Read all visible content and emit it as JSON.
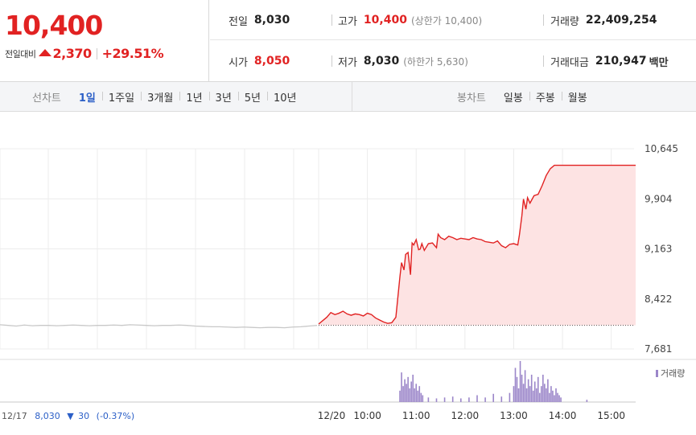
{
  "quote": {
    "price": "10,400",
    "change_label": "전일대비",
    "change_amount": "2,370",
    "change_pct": "+29.51%",
    "prev_close_label": "전일",
    "prev_close": "8,030",
    "high_label": "고가",
    "high": "10,400",
    "upper_limit": "(상한가 10,400)",
    "volume_label": "거래량",
    "volume": "22,409,254",
    "open_label": "시가",
    "open": "8,050",
    "low_label": "저가",
    "low": "8,030",
    "lower_limit": "(하한가 5,630)",
    "value_label": "거래대금",
    "value": "210,947",
    "value_unit": "백만"
  },
  "toolbar": {
    "line_chart_label": "선차트",
    "periods": [
      "1일",
      "1주일",
      "3개월",
      "1년",
      "3년",
      "5년",
      "10년"
    ],
    "active_period": "1일",
    "candle_chart_label": "봉차트",
    "candle_periods": [
      "일봉",
      "주봉",
      "월봉"
    ]
  },
  "colors": {
    "up": "#e12222",
    "area_fill": "#fde3e3",
    "prev_day_line": "#c8c8c8",
    "volume_bar": "#9b86c9",
    "active_tab": "#2b5fc7"
  },
  "chart_data": {
    "type": "line",
    "y_ticks": [
      "10,645",
      "9,904",
      "9,163",
      "8,422",
      "7,681"
    ],
    "ylim": [
      7681,
      10645
    ],
    "x_ticks": [
      "12/20",
      "10:00",
      "11:00",
      "12:00",
      "13:00",
      "14:00",
      "15:00"
    ],
    "prev_close": 8030,
    "grid": true,
    "series": [
      {
        "date": "12/17",
        "role": "previous day",
        "x": [
          0,
          10,
          20,
          30,
          40,
          50,
          60,
          70,
          80,
          90,
          100,
          110,
          120,
          130,
          140,
          150,
          160,
          170,
          180,
          190,
          200,
          210,
          220,
          230,
          240,
          250,
          260,
          270,
          280,
          290,
          300,
          310,
          320,
          330,
          340,
          350,
          360,
          370,
          380,
          390
        ],
        "values": [
          8040,
          8030,
          8020,
          8035,
          8025,
          8030,
          8030,
          8025,
          8030,
          8035,
          8030,
          8025,
          8030,
          8030,
          8035,
          8030,
          8040,
          8035,
          8030,
          8025,
          8030,
          8030,
          8035,
          8030,
          8020,
          8015,
          8010,
          8010,
          8005,
          8000,
          8005,
          8000,
          7995,
          8000,
          8000,
          7995,
          8005,
          8010,
          8020,
          8030
        ]
      },
      {
        "date": "12/20",
        "role": "today",
        "x": [
          "09:00",
          "09:05",
          "09:10",
          "09:15",
          "09:20",
          "09:25",
          "09:30",
          "09:35",
          "09:40",
          "09:45",
          "09:50",
          "09:55",
          "10:00",
          "10:05",
          "10:10",
          "10:15",
          "10:20",
          "10:25",
          "10:30",
          "10:35",
          "10:40",
          "10:42",
          "10:45",
          "10:47",
          "10:50",
          "10:53",
          "10:55",
          "10:57",
          "11:00",
          "11:03",
          "11:05",
          "11:07",
          "11:10",
          "11:15",
          "11:20",
          "11:25",
          "11:27",
          "11:30",
          "11:35",
          "11:40",
          "11:45",
          "11:50",
          "11:55",
          "12:00",
          "12:05",
          "12:10",
          "12:15",
          "12:20",
          "12:25",
          "12:30",
          "12:35",
          "12:40",
          "12:45",
          "12:50",
          "12:55",
          "13:00",
          "13:05",
          "13:07",
          "13:10",
          "13:12",
          "13:15",
          "13:17",
          "13:20",
          "13:25",
          "13:30",
          "13:35",
          "13:40",
          "13:45",
          "13:50",
          "14:00",
          "14:30",
          "15:00",
          "15:20",
          "15:30"
        ],
        "values": [
          8050,
          8100,
          8150,
          8220,
          8190,
          8210,
          8240,
          8200,
          8180,
          8200,
          8190,
          8170,
          8210,
          8190,
          8140,
          8110,
          8080,
          8060,
          8070,
          8150,
          8750,
          8960,
          8850,
          9080,
          9110,
          8780,
          9250,
          9220,
          9300,
          9150,
          9160,
          9240,
          9140,
          9240,
          9250,
          9180,
          9380,
          9330,
          9300,
          9350,
          9330,
          9300,
          9320,
          9310,
          9300,
          9330,
          9310,
          9300,
          9270,
          9260,
          9250,
          9280,
          9210,
          9180,
          9230,
          9240,
          9220,
          9370,
          9650,
          9900,
          9750,
          9920,
          9840,
          9950,
          9970,
          10100,
          10250,
          10350,
          10400,
          10400,
          10400,
          10400,
          10400,
          10400
        ]
      }
    ],
    "volume_label": "거래량",
    "volume": {
      "x": [
        "10:40",
        "10:42",
        "10:44",
        "10:46",
        "10:48",
        "10:50",
        "10:52",
        "10:54",
        "10:56",
        "10:58",
        "11:00",
        "11:02",
        "11:04",
        "11:06",
        "11:08",
        "11:15",
        "11:25",
        "11:35",
        "11:45",
        "11:55",
        "12:05",
        "12:15",
        "12:25",
        "12:35",
        "12:45",
        "12:55",
        "13:00",
        "13:02",
        "13:04",
        "13:06",
        "13:08",
        "13:10",
        "13:12",
        "13:14",
        "13:16",
        "13:18",
        "13:20",
        "13:22",
        "13:24",
        "13:26",
        "13:28",
        "13:30",
        "13:32",
        "13:34",
        "13:36",
        "13:38",
        "13:40",
        "13:42",
        "13:44",
        "13:46",
        "13:48",
        "13:50",
        "13:52",
        "13:54",
        "13:56",
        "13:58",
        "14:30"
      ],
      "values": [
        0.25,
        0.65,
        0.35,
        0.5,
        0.4,
        0.55,
        0.3,
        0.45,
        0.6,
        0.3,
        0.4,
        0.25,
        0.35,
        0.2,
        0.15,
        0.1,
        0.08,
        0.1,
        0.12,
        0.08,
        0.1,
        0.15,
        0.1,
        0.18,
        0.12,
        0.2,
        0.35,
        0.75,
        0.55,
        0.3,
        0.9,
        0.6,
        0.4,
        0.7,
        0.3,
        0.5,
        0.35,
        0.6,
        0.25,
        0.45,
        0.3,
        0.55,
        0.2,
        0.35,
        0.6,
        0.4,
        0.3,
        0.5,
        0.2,
        0.35,
        0.25,
        0.15,
        0.3,
        0.2,
        0.15,
        0.1,
        0.05
      ]
    },
    "footer": {
      "date": "12/17",
      "close": "8,030",
      "change": "30",
      "change_pct": "(-0.37%)"
    }
  }
}
